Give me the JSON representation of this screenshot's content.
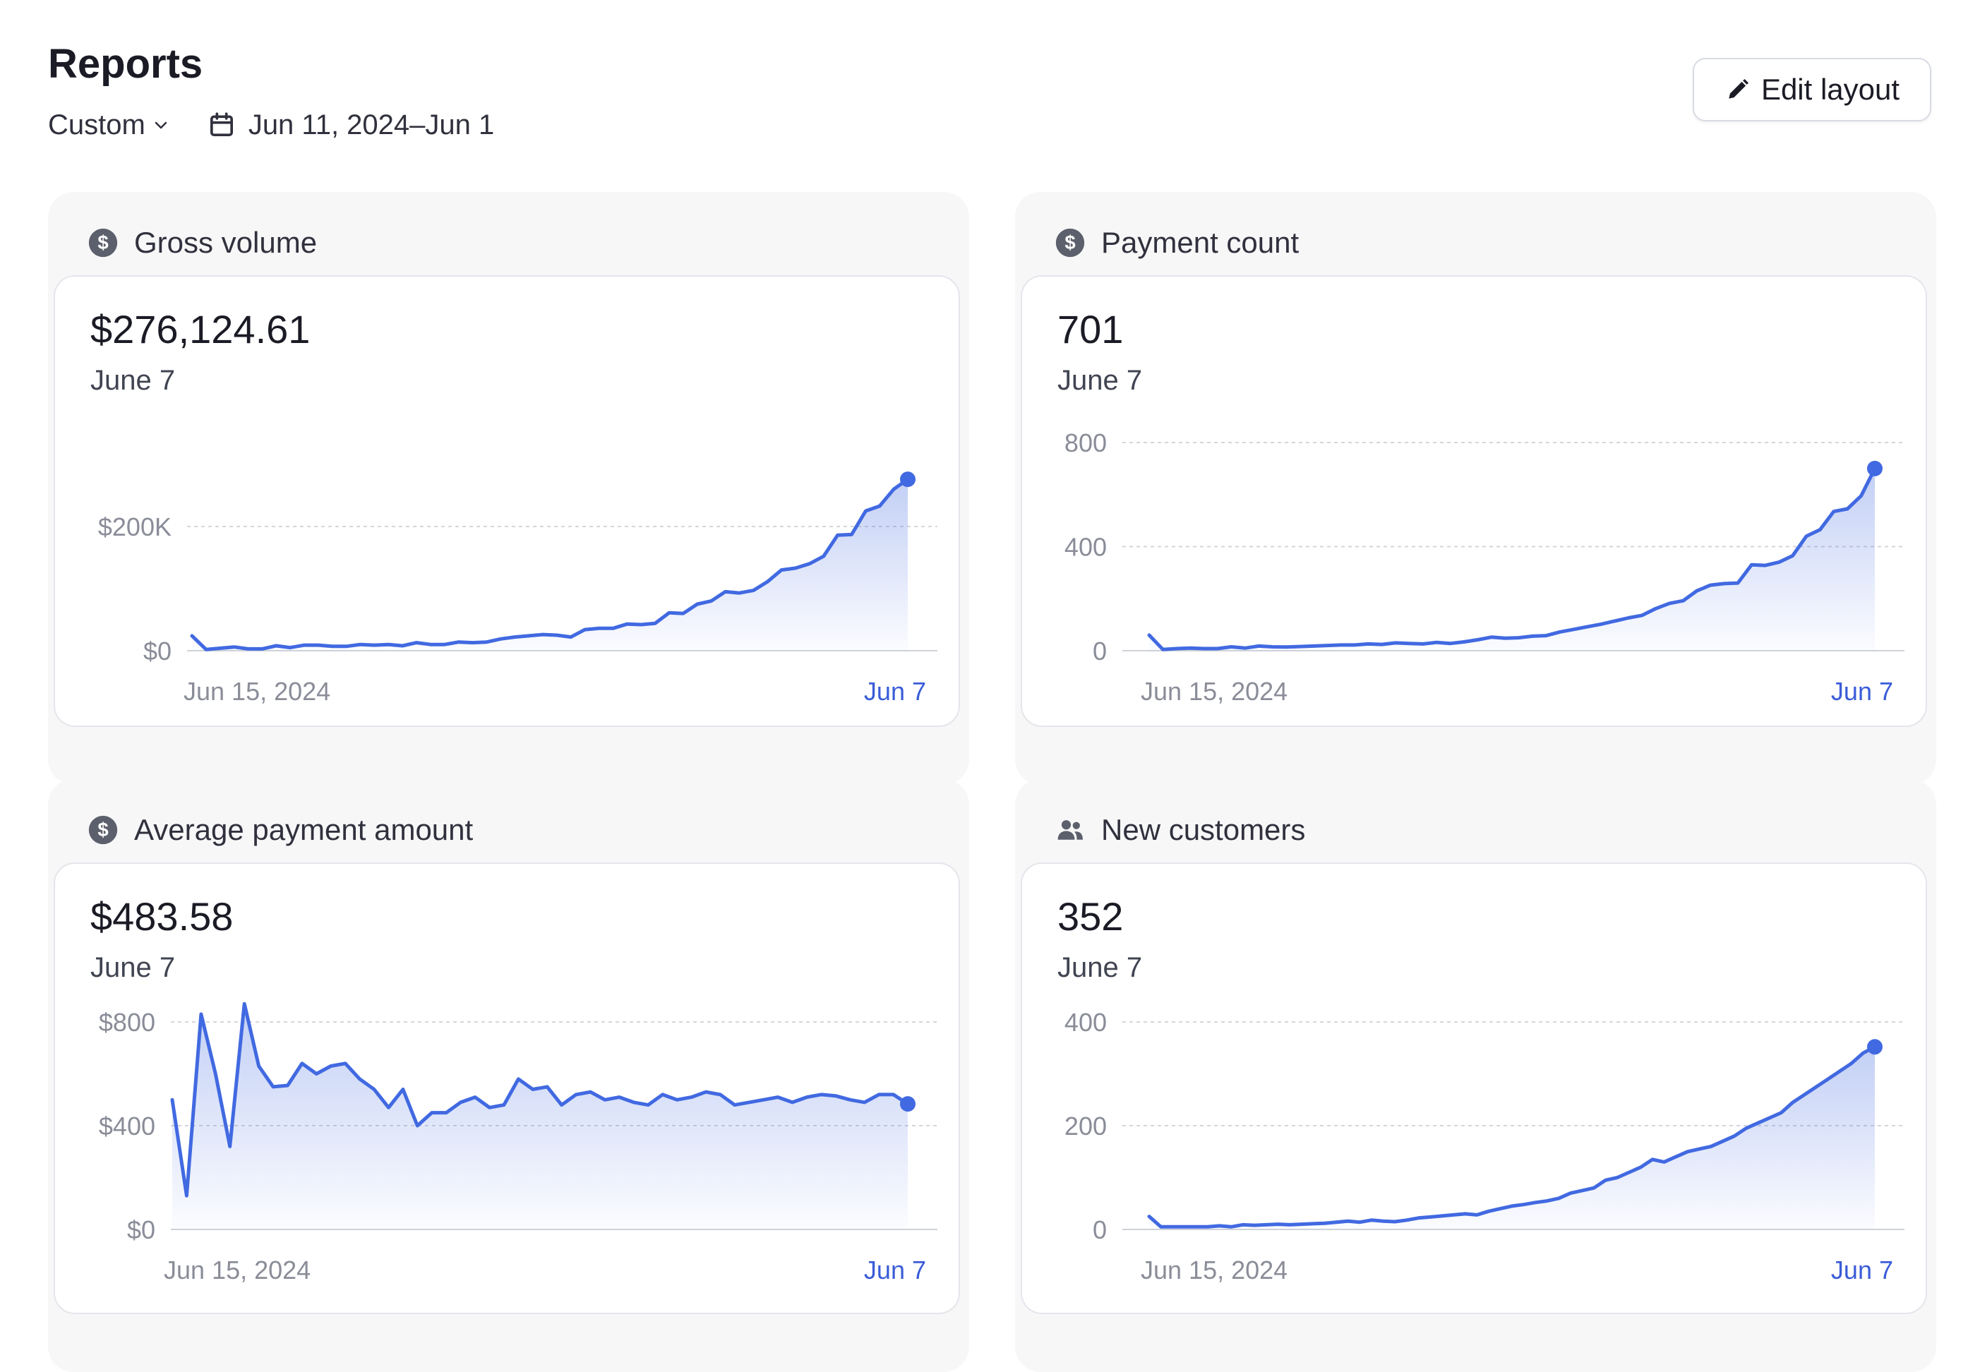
{
  "page": {
    "title": "Reports",
    "range_select": "Custom",
    "date_range": "Jun 11, 2024–Jun 1",
    "edit_label": "Edit layout"
  },
  "colors": {
    "line": "#4169e1",
    "grid": "#d4d6dc",
    "axis_label": "#8a8d98",
    "end_label": "#3a5cd8"
  },
  "cards": [
    {
      "title": "Gross volume",
      "icon": "dollar-circle-icon",
      "value": "$276,124.61",
      "date": "June 7",
      "chart_data": {
        "type": "area",
        "y_ticks": [
          {
            "label": "$200K",
            "value": 200000
          },
          {
            "label": "$0",
            "value": 0
          }
        ],
        "ylim": [
          0,
          300000
        ],
        "x_start_label": "Jun 15, 2024",
        "x_end_label": "Jun 7",
        "values": [
          24000,
          2000,
          4000,
          6000,
          3000,
          3000,
          8000,
          5000,
          9000,
          9000,
          7000,
          7000,
          10000,
          9000,
          10000,
          8000,
          13000,
          10000,
          10000,
          14000,
          13000,
          14000,
          19000,
          22000,
          24000,
          26000,
          25000,
          22000,
          34000,
          36000,
          36000,
          43000,
          42000,
          44000,
          61000,
          60000,
          75000,
          80000,
          95000,
          93000,
          97000,
          111000,
          130000,
          133000,
          140000,
          152000,
          186000,
          187000,
          225000,
          233000,
          260000,
          276000
        ]
      }
    },
    {
      "title": "Payment count",
      "icon": "dollar-circle-icon",
      "value": "701",
      "date": "June 7",
      "chart_data": {
        "type": "area",
        "y_ticks": [
          {
            "label": "800",
            "value": 800
          },
          {
            "label": "400",
            "value": 400
          },
          {
            "label": "0",
            "value": 0
          }
        ],
        "ylim": [
          0,
          800
        ],
        "x_start_label": "Jun 15, 2024",
        "x_end_label": "Jun 7",
        "values": [
          60,
          5,
          8,
          10,
          8,
          8,
          15,
          10,
          18,
          15,
          14,
          16,
          18,
          20,
          22,
          22,
          26,
          24,
          30,
          28,
          26,
          32,
          28,
          34,
          42,
          52,
          48,
          50,
          56,
          58,
          72,
          82,
          92,
          102,
          114,
          126,
          136,
          162,
          182,
          192,
          230,
          252,
          258,
          260,
          330,
          328,
          340,
          365,
          440,
          465,
          535,
          545,
          595,
          700
        ]
      }
    },
    {
      "title": "Average payment amount",
      "icon": "dollar-circle-icon",
      "value": "$483.58",
      "date": "June 7",
      "chart_data": {
        "type": "area",
        "y_ticks": [
          {
            "label": "$800",
            "value": 800
          },
          {
            "label": "$400",
            "value": 400
          },
          {
            "label": "$0",
            "value": 0
          }
        ],
        "ylim": [
          0,
          800
        ],
        "x_start_label": "Jun 15, 2024",
        "x_end_label": "Jun 7",
        "values": [
          500,
          130,
          830,
          600,
          320,
          870,
          630,
          550,
          555,
          640,
          600,
          630,
          640,
          580,
          540,
          470,
          540,
          400,
          450,
          450,
          490,
          510,
          470,
          480,
          580,
          540,
          550,
          480,
          520,
          530,
          500,
          510,
          490,
          480,
          520,
          500,
          510,
          530,
          520,
          480,
          490,
          500,
          510,
          490,
          510,
          520,
          515,
          500,
          490,
          520,
          520,
          484
        ]
      }
    },
    {
      "title": "New customers",
      "icon": "users-icon",
      "value": "352",
      "date": "June 7",
      "chart_data": {
        "type": "area",
        "y_ticks": [
          {
            "label": "400",
            "value": 400
          },
          {
            "label": "200",
            "value": 200
          },
          {
            "label": "0",
            "value": 0
          }
        ],
        "ylim": [
          0,
          400
        ],
        "x_start_label": "Jun 15, 2024",
        "x_end_label": "Jun 7",
        "values": [
          25,
          5,
          5,
          5,
          5,
          5,
          7,
          5,
          9,
          8,
          9,
          10,
          9,
          10,
          11,
          12,
          14,
          16,
          14,
          18,
          16,
          15,
          18,
          22,
          24,
          26,
          28,
          30,
          28,
          35,
          40,
          45,
          48,
          52,
          55,
          60,
          70,
          75,
          80,
          95,
          100,
          110,
          120,
          135,
          130,
          140,
          150,
          155,
          160,
          170,
          180,
          195,
          205,
          215,
          225,
          245,
          260,
          275,
          290,
          305,
          320,
          340,
          352
        ]
      }
    }
  ]
}
